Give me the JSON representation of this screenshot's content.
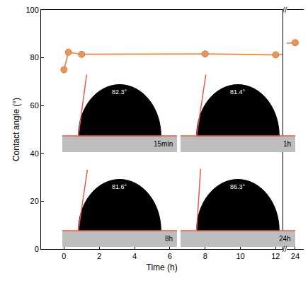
{
  "chart_data": {
    "type": "line",
    "x_title": "Time (h)",
    "y_title": "Contact angle (°)",
    "series": [
      {
        "name": "Contact angle",
        "color": "#e8955c",
        "marker": "circle",
        "line_style": "solid",
        "x": [
          0,
          0.25,
          1,
          8,
          12,
          24
        ],
        "values": [
          75,
          82.3,
          81.4,
          81.6,
          81.2,
          86.3
        ]
      }
    ],
    "xlim": [
      [
        -1.3,
        12.4
      ],
      [
        23.5,
        24.5
      ]
    ],
    "xticks": [
      [
        0,
        2,
        4,
        6,
        8,
        10,
        12
      ],
      [
        24
      ]
    ],
    "break_mark": "//",
    "ylim": [
      0,
      100
    ],
    "yticks": [
      0,
      20,
      40,
      60,
      80,
      100
    ],
    "grid": false,
    "insets": [
      {
        "value": 82.3,
        "label": "82.3°",
        "time": "15min"
      },
      {
        "value": 81.4,
        "label": "81.4°",
        "time": "1h"
      },
      {
        "value": 81.6,
        "label": "81.6°",
        "time": "8h"
      },
      {
        "value": 86.3,
        "label": "86.3°",
        "time": "24h"
      }
    ]
  }
}
